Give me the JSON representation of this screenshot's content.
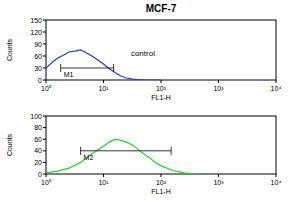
{
  "chart_data": [
    {
      "type": "line",
      "title": "MCF-7",
      "xlabel": "FL1-H",
      "ylabel": "Counts",
      "log": "x",
      "color": "#2a3bc8",
      "x": [
        1,
        1.3,
        1.6,
        2,
        2.5,
        3.2,
        4,
        5,
        6.3,
        8,
        10,
        12.6,
        16,
        20,
        25,
        32,
        40,
        50,
        63,
        80,
        100
      ],
      "values": [
        30,
        45,
        55,
        62,
        70,
        72,
        75,
        68,
        60,
        50,
        40,
        28,
        18,
        10,
        5,
        2,
        1,
        0,
        0,
        0,
        0
      ],
      "xlim": [
        1,
        10000
      ],
      "xticks": [
        {
          "value": 1,
          "label": "10⁰"
        },
        {
          "value": 10,
          "label": "10¹"
        },
        {
          "value": 100,
          "label": "10²"
        },
        {
          "value": 1000,
          "label": "10³"
        },
        {
          "value": 10000,
          "label": "10⁴"
        }
      ],
      "ylim": [
        0,
        150
      ],
      "yticks": [
        0,
        30,
        60,
        90,
        120,
        150
      ],
      "annotations": [
        {
          "text": "M1",
          "x": [
            1.8,
            15
          ],
          "y": 30
        },
        {
          "text": "control",
          "x": [
            30
          ],
          "y": 60
        }
      ]
    },
    {
      "type": "line",
      "xlabel": "FL1-H",
      "ylabel": "Counts",
      "log": "x",
      "color": "#33cc33",
      "x": [
        1,
        1.6,
        2.5,
        4,
        6.3,
        10,
        12.6,
        16,
        20,
        25,
        32,
        40,
        50,
        63,
        80,
        100,
        160,
        250,
        400
      ],
      "values": [
        2,
        5,
        10,
        20,
        35,
        48,
        55,
        60,
        58,
        55,
        50,
        42,
        35,
        28,
        20,
        14,
        6,
        2,
        0
      ],
      "xlim": [
        1,
        10000
      ],
      "xticks": [
        {
          "value": 1,
          "label": "10⁰"
        },
        {
          "value": 10,
          "label": "10¹"
        },
        {
          "value": 100,
          "label": "10²"
        },
        {
          "value": 1000,
          "label": "10³"
        },
        {
          "value": 10000,
          "label": "10⁴"
        }
      ],
      "ylim": [
        0,
        100
      ],
      "yticks": [
        0,
        20,
        40,
        60,
        80,
        100
      ],
      "annotations": [
        {
          "text": "M2",
          "x": [
            4,
            150
          ],
          "y": 40
        }
      ]
    }
  ]
}
